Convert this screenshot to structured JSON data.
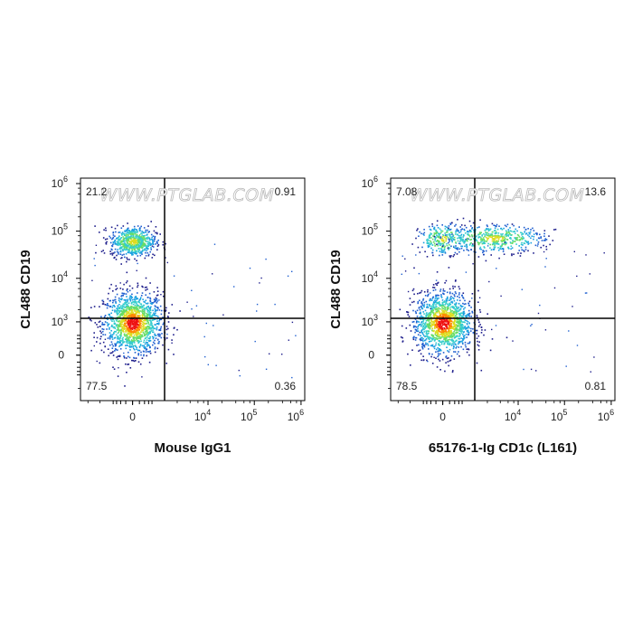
{
  "colors": {
    "density_scale": [
      "#1e1e8c",
      "#1f5fd0",
      "#1aa0e0",
      "#33cccc",
      "#66dd66",
      "#dddd22",
      "#ff8800",
      "#ee1111"
    ],
    "gate": "#000000",
    "frame": "#000000"
  },
  "chart_data": [
    {
      "type": "scatter",
      "subtype": "flow-cytometry-density-dot-plot",
      "xlabel": "Mouse IgG1",
      "ylabel": "CL488 CD19",
      "watermark": "WWW.PTGLAB.COM",
      "x_scale": "biexponential",
      "y_scale": "biexponential",
      "x_ticks": [
        {
          "base": "0",
          "exp": ""
        },
        {
          "base": "10",
          "exp": "4"
        },
        {
          "base": "10",
          "exp": "5"
        },
        {
          "base": "10",
          "exp": "6"
        }
      ],
      "y_ticks": [
        {
          "base": "0",
          "exp": ""
        },
        {
          "base": "10",
          "exp": "3"
        },
        {
          "base": "10",
          "exp": "4"
        },
        {
          "base": "10",
          "exp": "5"
        },
        {
          "base": "10",
          "exp": "6"
        }
      ],
      "quadrants": {
        "UL": "21.2",
        "UR": "0.91",
        "LL": "77.5",
        "LR": "0.36"
      },
      "populations": [
        {
          "cx": 0,
          "cy": 950,
          "n": 1400,
          "sx": 0.55,
          "sy": 0.42
        },
        {
          "cx": 0,
          "cy": 62000,
          "n": 650,
          "sx": 0.42,
          "sy": 0.2
        }
      ]
    },
    {
      "type": "scatter",
      "subtype": "flow-cytometry-density-dot-plot",
      "xlabel": "65176-1-Ig CD1c (L161)",
      "ylabel": "CL488 CD19",
      "watermark": "WWW.PTGLAB.COM",
      "x_scale": "biexponential",
      "y_scale": "biexponential",
      "x_ticks": [
        {
          "base": "0",
          "exp": ""
        },
        {
          "base": "10",
          "exp": "4"
        },
        {
          "base": "10",
          "exp": "5"
        },
        {
          "base": "10",
          "exp": "6"
        }
      ],
      "y_ticks": [
        {
          "base": "0",
          "exp": ""
        },
        {
          "base": "10",
          "exp": "3"
        },
        {
          "base": "10",
          "exp": "4"
        },
        {
          "base": "10",
          "exp": "5"
        },
        {
          "base": "10",
          "exp": "6"
        }
      ],
      "quadrants": {
        "UL": "7.08",
        "UR": "13.6",
        "LL": "78.5",
        "LR": "0.81"
      },
      "populations": [
        {
          "cx": 0,
          "cy": 950,
          "n": 1400,
          "sx": 0.55,
          "sy": 0.42
        },
        {
          "cx": 0,
          "cy": 70000,
          "n": 260,
          "sx": 0.45,
          "sy": 0.2
        },
        {
          "cx": 2800,
          "cy": 72000,
          "n": 500,
          "sx": 0.4,
          "sy": 0.18
        }
      ]
    }
  ]
}
